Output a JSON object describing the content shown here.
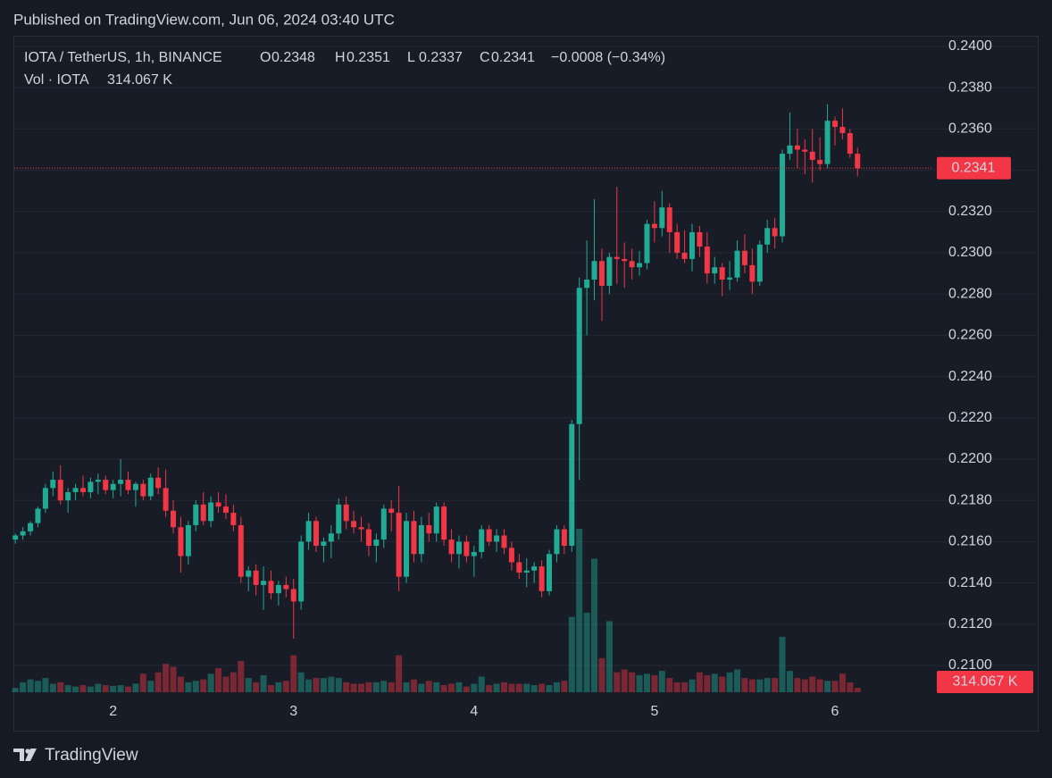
{
  "header": {
    "published": "Published on TradingView.com, Jun 06, 2024 03:40 UTC"
  },
  "footer": {
    "brand": "TradingView"
  },
  "chart_data": {
    "type": "candlestick",
    "symbol": "IOTA / TetherUS, 1h, BINANCE",
    "ohlc_letters": [
      "O",
      "H",
      "L",
      "C"
    ],
    "change": "−0.0008 (−0.34%)",
    "categories": [
      null,
      null,
      null,
      null,
      null,
      null,
      null,
      null,
      null,
      null,
      null,
      null,
      null,
      "2",
      null,
      null,
      null,
      null,
      null,
      null,
      null,
      null,
      null,
      null,
      null,
      null,
      null,
      null,
      null,
      null,
      null,
      null,
      null,
      null,
      null,
      null,
      null,
      "3",
      null,
      null,
      null,
      null,
      null,
      null,
      null,
      null,
      null,
      null,
      null,
      null,
      null,
      null,
      null,
      null,
      null,
      null,
      null,
      null,
      null,
      null,
      null,
      "4",
      null,
      null,
      null,
      null,
      null,
      null,
      null,
      null,
      null,
      null,
      null,
      null,
      null,
      null,
      null,
      null,
      null,
      null,
      null,
      null,
      null,
      null,
      null,
      "5",
      null,
      null,
      null,
      null,
      null,
      null,
      null,
      null,
      null,
      null,
      null,
      null,
      null,
      null,
      null,
      null,
      null,
      null,
      null,
      null,
      null,
      null,
      null,
      "6",
      null,
      null,
      null
    ],
    "open": [
      0.2161,
      0.2163,
      0.2165,
      0.2169,
      0.2176,
      0.2186,
      0.219,
      0.218,
      0.2184,
      0.2186,
      0.2184,
      0.2189,
      0.219,
      0.2185,
      0.2188,
      0.219,
      0.2185,
      0.2188,
      0.2182,
      0.2191,
      0.2186,
      0.2175,
      0.2167,
      0.2153,
      0.2168,
      0.2178,
      0.217,
      0.2179,
      0.2177,
      0.2174,
      0.2168,
      0.2143,
      0.2146,
      0.2139,
      0.2141,
      0.2135,
      0.2139,
      0.2137,
      0.2131,
      0.216,
      0.217,
      0.2158,
      0.216,
      0.2164,
      0.2178,
      0.217,
      0.2167,
      0.2166,
      0.2158,
      0.2161,
      0.2176,
      0.2174,
      0.2143,
      0.217,
      0.2154,
      0.2168,
      0.2164,
      0.2177,
      0.2161,
      0.2154,
      0.216,
      0.2153,
      0.2155,
      0.2166,
      0.216,
      0.2163,
      0.2157,
      0.215,
      0.2145,
      0.2146,
      0.2148,
      0.2136,
      0.2154,
      0.2166,
      0.2158,
      0.2217,
      0.2283,
      0.2287,
      0.2296,
      0.2284,
      0.2298,
      0.2297,
      0.2296,
      0.2293,
      0.2295,
      0.2314,
      0.2312,
      0.2322,
      0.231,
      0.23,
      0.2297,
      0.231,
      0.2303,
      0.229,
      0.2293,
      0.2287,
      0.2288,
      0.2301,
      0.2294,
      0.2286,
      0.2304,
      0.2312,
      0.2308,
      0.2348,
      0.2352,
      0.235,
      0.2349,
      0.2345,
      0.2343,
      0.2364,
      0.2361,
      0.2358,
      0.2348
    ],
    "high": [
      0.2164,
      0.2167,
      0.217,
      0.2177,
      0.2188,
      0.2194,
      0.2197,
      0.2186,
      0.2188,
      0.2192,
      0.2191,
      0.2193,
      0.2192,
      0.219,
      0.22,
      0.2194,
      0.2189,
      0.219,
      0.2193,
      0.2196,
      0.2195,
      0.218,
      0.2172,
      0.217,
      0.218,
      0.2184,
      0.2182,
      0.2184,
      0.2183,
      0.2178,
      0.2172,
      0.2148,
      0.2149,
      0.2148,
      0.2146,
      0.2141,
      0.2143,
      0.2142,
      0.2163,
      0.2174,
      0.2172,
      0.2162,
      0.2168,
      0.2181,
      0.2182,
      0.2175,
      0.2172,
      0.2169,
      0.2164,
      0.2178,
      0.218,
      0.2187,
      0.2174,
      0.2175,
      0.2172,
      0.2174,
      0.2179,
      0.2179,
      0.2166,
      0.2163,
      0.2163,
      0.2158,
      0.2168,
      0.2168,
      0.2166,
      0.2166,
      0.216,
      0.2154,
      0.2152,
      0.215,
      0.2151,
      0.2156,
      0.2168,
      0.2168,
      0.2219,
      0.2288,
      0.2306,
      0.2326,
      0.2302,
      0.23,
      0.2332,
      0.2305,
      0.2302,
      0.2301,
      0.2316,
      0.2325,
      0.233,
      0.2324,
      0.2314,
      0.2311,
      0.2314,
      0.2313,
      0.231,
      0.2298,
      0.2295,
      0.2296,
      0.2306,
      0.2309,
      0.2302,
      0.2306,
      0.2316,
      0.2317,
      0.235,
      0.2368,
      0.236,
      0.2355,
      0.236,
      0.2356,
      0.2372,
      0.2366,
      0.237,
      0.236,
      0.2351
    ],
    "low": [
      0.2159,
      0.2161,
      0.2163,
      0.2167,
      0.2174,
      0.2182,
      0.2178,
      0.2174,
      0.218,
      0.2182,
      0.2181,
      0.2183,
      0.2183,
      0.2181,
      0.2182,
      0.2183,
      0.2177,
      0.218,
      0.218,
      0.2183,
      0.2172,
      0.2164,
      0.2145,
      0.2149,
      0.2165,
      0.2168,
      0.2167,
      0.2174,
      0.2171,
      0.2165,
      0.214,
      0.2136,
      0.2134,
      0.2127,
      0.2132,
      0.2129,
      0.2133,
      0.2113,
      0.2127,
      0.2156,
      0.2155,
      0.215,
      0.2152,
      0.2161,
      0.2166,
      0.2164,
      0.216,
      0.2153,
      0.215,
      0.2157,
      0.2165,
      0.2136,
      0.214,
      0.215,
      0.215,
      0.216,
      0.216,
      0.2158,
      0.215,
      0.2147,
      0.215,
      0.2143,
      0.2152,
      0.2158,
      0.2155,
      0.2154,
      0.2146,
      0.2142,
      0.2138,
      0.214,
      0.2133,
      0.2134,
      0.215,
      0.2154,
      0.2155,
      0.219,
      0.226,
      0.2277,
      0.2267,
      0.228,
      0.2285,
      0.2283,
      0.2287,
      0.2289,
      0.2292,
      0.2305,
      0.2308,
      0.23,
      0.2297,
      0.2295,
      0.2291,
      0.2298,
      0.2285,
      0.2285,
      0.2279,
      0.2282,
      0.2286,
      0.229,
      0.228,
      0.2284,
      0.23,
      0.2302,
      0.2305,
      0.2345,
      0.2341,
      0.2338,
      0.2334,
      0.234,
      0.2341,
      0.2352,
      0.2355,
      0.2346,
      0.2337
    ],
    "close": [
      0.2163,
      0.2165,
      0.2169,
      0.2176,
      0.2186,
      0.219,
      0.218,
      0.2184,
      0.2186,
      0.2184,
      0.2189,
      0.219,
      0.2185,
      0.2188,
      0.219,
      0.2185,
      0.2188,
      0.2182,
      0.2191,
      0.2186,
      0.2175,
      0.2167,
      0.2153,
      0.2168,
      0.2178,
      0.217,
      0.2179,
      0.2177,
      0.2174,
      0.2168,
      0.2143,
      0.2146,
      0.2139,
      0.2141,
      0.2135,
      0.2139,
      0.2137,
      0.2131,
      0.216,
      0.217,
      0.2158,
      0.216,
      0.2164,
      0.2178,
      0.217,
      0.2167,
      0.2166,
      0.2158,
      0.2161,
      0.2176,
      0.2174,
      0.2143,
      0.217,
      0.2154,
      0.2168,
      0.2164,
      0.2177,
      0.2161,
      0.2154,
      0.216,
      0.2153,
      0.2155,
      0.2166,
      0.216,
      0.2163,
      0.2157,
      0.215,
      0.2145,
      0.2146,
      0.2148,
      0.2136,
      0.2154,
      0.2166,
      0.2158,
      0.2217,
      0.2283,
      0.2287,
      0.2296,
      0.2284,
      0.2298,
      0.2297,
      0.2296,
      0.2293,
      0.2295,
      0.2314,
      0.2312,
      0.2322,
      0.231,
      0.23,
      0.2297,
      0.231,
      0.2303,
      0.229,
      0.2293,
      0.2287,
      0.2288,
      0.2301,
      0.2294,
      0.2286,
      0.2304,
      0.2312,
      0.2308,
      0.2348,
      0.2352,
      0.235,
      0.2349,
      0.2345,
      0.2343,
      0.2364,
      0.2361,
      0.2358,
      0.2348,
      0.2341
    ],
    "up_color": "#22ab94",
    "down_color": "#f23645",
    "ylim": [
      0.20684,
      0.24052
    ],
    "yticks": [
      {
        "value": 0.21,
        "label": "0.2100"
      },
      {
        "value": 0.212,
        "label": "0.2120"
      },
      {
        "value": 0.214,
        "label": "0.2140"
      },
      {
        "value": 0.216,
        "label": "0.2160"
      },
      {
        "value": 0.218,
        "label": "0.2180"
      },
      {
        "value": 0.22,
        "label": "0.2200"
      },
      {
        "value": 0.222,
        "label": "0.2220"
      },
      {
        "value": 0.224,
        "label": "0.2240"
      },
      {
        "value": 0.226,
        "label": "0.2260"
      },
      {
        "value": 0.228,
        "label": "0.2280"
      },
      {
        "value": 0.23,
        "label": "0.2300"
      },
      {
        "value": 0.232,
        "label": "0.2320"
      },
      {
        "value": 0.234,
        "label": "0.2340"
      },
      {
        "value": 0.236,
        "label": "0.2360"
      },
      {
        "value": 0.238,
        "label": "0.2380"
      },
      {
        "value": 0.24,
        "label": "0.2400"
      }
    ],
    "grid": true,
    "volume": {
      "name": "Vol · IOTA",
      "values": [
        300,
        700,
        900,
        800,
        1000,
        600,
        700,
        500,
        400,
        500,
        400,
        600,
        500,
        450,
        500,
        400,
        600,
        1300,
        800,
        1400,
        2000,
        1800,
        1100,
        700,
        800,
        900,
        1300,
        1700,
        1100,
        1400,
        2200,
        1000,
        700,
        1200,
        500,
        700,
        800,
        2600,
        1400,
        900,
        1000,
        1000,
        1100,
        1000,
        700,
        600,
        600,
        700,
        700,
        800,
        700,
        2600,
        700,
        900,
        600,
        800,
        700,
        500,
        600,
        700,
        400,
        600,
        1100,
        500,
        600,
        700,
        600,
        600,
        600,
        500,
        600,
        500,
        700,
        800,
        5300,
        11500,
        5600,
        9400,
        2400,
        5000,
        1400,
        1600,
        1400,
        1200,
        1300,
        1200,
        1500,
        1000,
        700,
        700,
        900,
        1400,
        1200,
        1300,
        1100,
        1400,
        1600,
        1000,
        900,
        900,
        1000,
        1000,
        3900,
        1500,
        1000,
        900,
        1100,
        900,
        800,
        800,
        1300,
        700,
        314.067
      ],
      "last_value_label": "314.067 K"
    }
  }
}
